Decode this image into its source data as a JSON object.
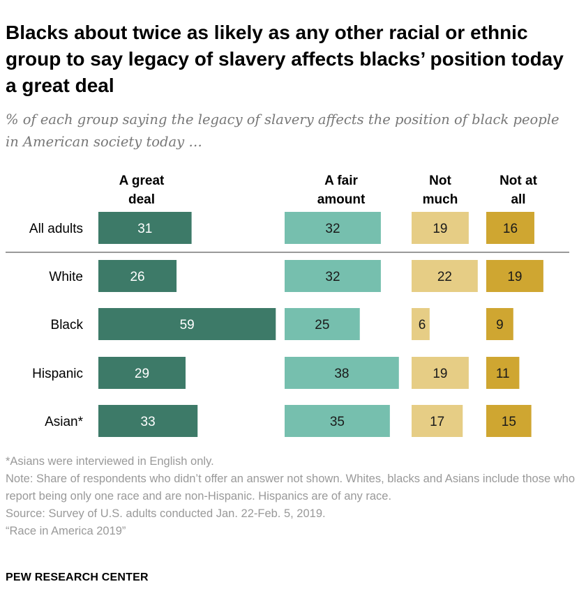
{
  "title": "Blacks about twice as likely as any other racial or ethnic group to say legacy of slavery affects blacks’ position today a great deal",
  "subtitle": "% of each group saying the legacy of slavery affects the position of black people in American society today …",
  "chart_data": {
    "type": "bar",
    "orientation": "horizontal",
    "stacking": "side-by-side-columns",
    "categories": [
      "All adults",
      "White",
      "Black",
      "Hispanic",
      "Asian*"
    ],
    "series": [
      {
        "name": "A great deal",
        "header_lines": [
          "A great",
          "deal"
        ],
        "color": "#3d7a68",
        "label_color": "#ffffff",
        "values": [
          31,
          26,
          59,
          29,
          33
        ]
      },
      {
        "name": "A fair amount",
        "header_lines": [
          "A fair",
          "amount"
        ],
        "color": "#76bfae",
        "label_color": "#1a1a1a",
        "values": [
          32,
          32,
          25,
          38,
          35
        ]
      },
      {
        "name": "Not much",
        "header_lines": [
          "Not",
          "much"
        ],
        "color": "#e6cd85",
        "label_color": "#1a1a1a",
        "values": [
          19,
          22,
          6,
          19,
          17
        ]
      },
      {
        "name": "Not at all",
        "header_lines": [
          "Not at",
          "all"
        ],
        "color": "#cfa631",
        "label_color": "#1a1a1a",
        "values": [
          16,
          19,
          9,
          11,
          15
        ]
      }
    ],
    "title": "Blacks about twice as likely as any other racial or ethnic group to say legacy of slavery affects blacks’ position today a great deal",
    "xlabel": "",
    "ylabel": "",
    "unit": "%",
    "grid": false,
    "legend": "column headers at top"
  },
  "notes": {
    "asterisk": "*Asians were interviewed in English only.",
    "note": "Note: Share of respondents who didn’t offer an answer not shown. Whites, blacks and Asians include those who report being only one race and are non-Hispanic. Hispanics are of any race.",
    "source": "Source: Survey of U.S. adults conducted Jan. 22-Feb. 5, 2019.",
    "report": "“Race in America 2019”"
  },
  "brand": "PEW RESEARCH CENTER",
  "colors": {
    "divider": "#999999",
    "subtitle": "#777777",
    "notes": "#999999"
  }
}
